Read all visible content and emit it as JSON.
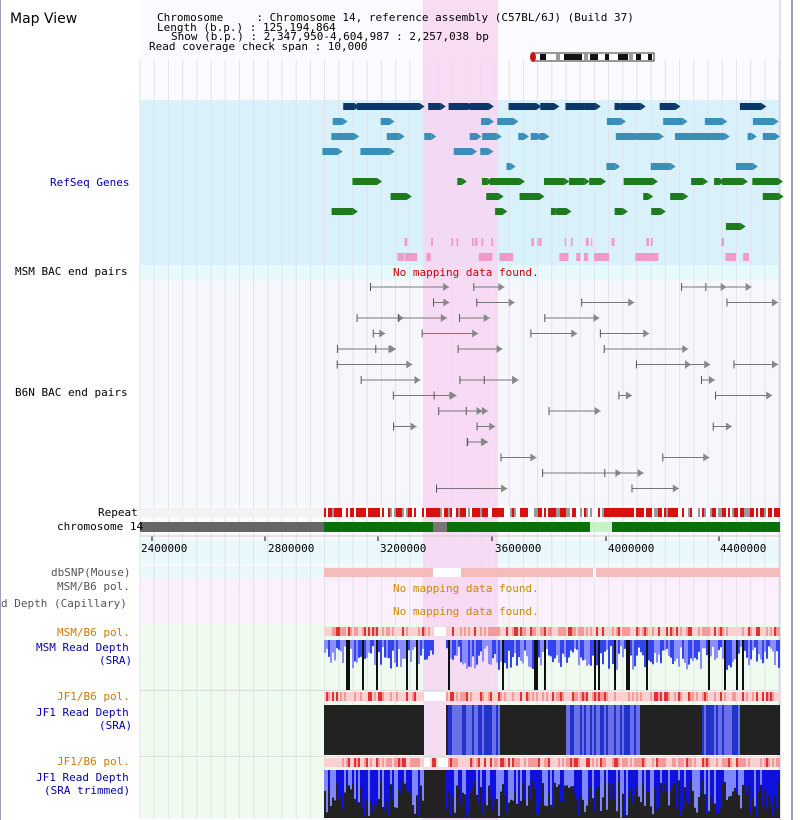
{
  "view_title": "Map View",
  "header": {
    "chromosome_line": "Chromosome     : Chromosome 14, reference assembly (C57BL/6J) (Build 37)",
    "length_line": "Length (b.p.) : 125,194,864",
    "show_line": "Show (b.p.) : 2,347,950-4,604,987 : 2,257,038 bp",
    "coverage_line": "Read coverage check span : 10,000"
  },
  "tracks": {
    "refseq": "RefSeq Genes",
    "msm_bac": "MSM BAC end pairs",
    "msm_bac_msg": "No mapping data found.",
    "b6n_bac": "B6N BAC end pairs",
    "repeat": "Repeat",
    "chromosome": "chromosome 14",
    "dbsnp": "dbSNP(Mouse)",
    "msm_b6_pol_1": "MSM/B6 pol.",
    "read_depth_capillary": "d Depth (Capillary)",
    "no_data_1": "No mapping data found.",
    "no_data_2": "No mapping data found.",
    "msm_b6_pol_2": "MSM/B6 pol.",
    "msm_read_depth_1": "MSM Read Depth",
    "msm_read_depth_2": "(SRA)",
    "jf1_b6_pol_1": "JF1/B6 pol.",
    "jf1_read_depth_1": "JF1 Read Depth",
    "jf1_read_depth_2": "(SRA)",
    "jf1_b6_pol_2": "JF1/B6 pol.",
    "jf1_trim_1": "JF1 Read Depth",
    "jf1_trim_2": "(SRA trimmed)"
  },
  "axis_ticks": [
    "2400000",
    "2800000",
    "3200000",
    "3600000",
    "4000000",
    "4400000"
  ],
  "colors": {
    "label_blue": "#0000aa",
    "label_orange": "#cc7a00",
    "no_data_red": "#cc0000",
    "no_data_orange": "#cc8800",
    "highlight_pink": "#f7d6f2",
    "refseq_bg": "#d8f1fb",
    "gene_navy": "#0b3866",
    "gene_teal": "#3a8fb8",
    "gene_green": "#1d7a1d",
    "chrom_green": "#0a700a",
    "depth_blue": "#2233dd",
    "depth_dark": "#222222"
  }
}
